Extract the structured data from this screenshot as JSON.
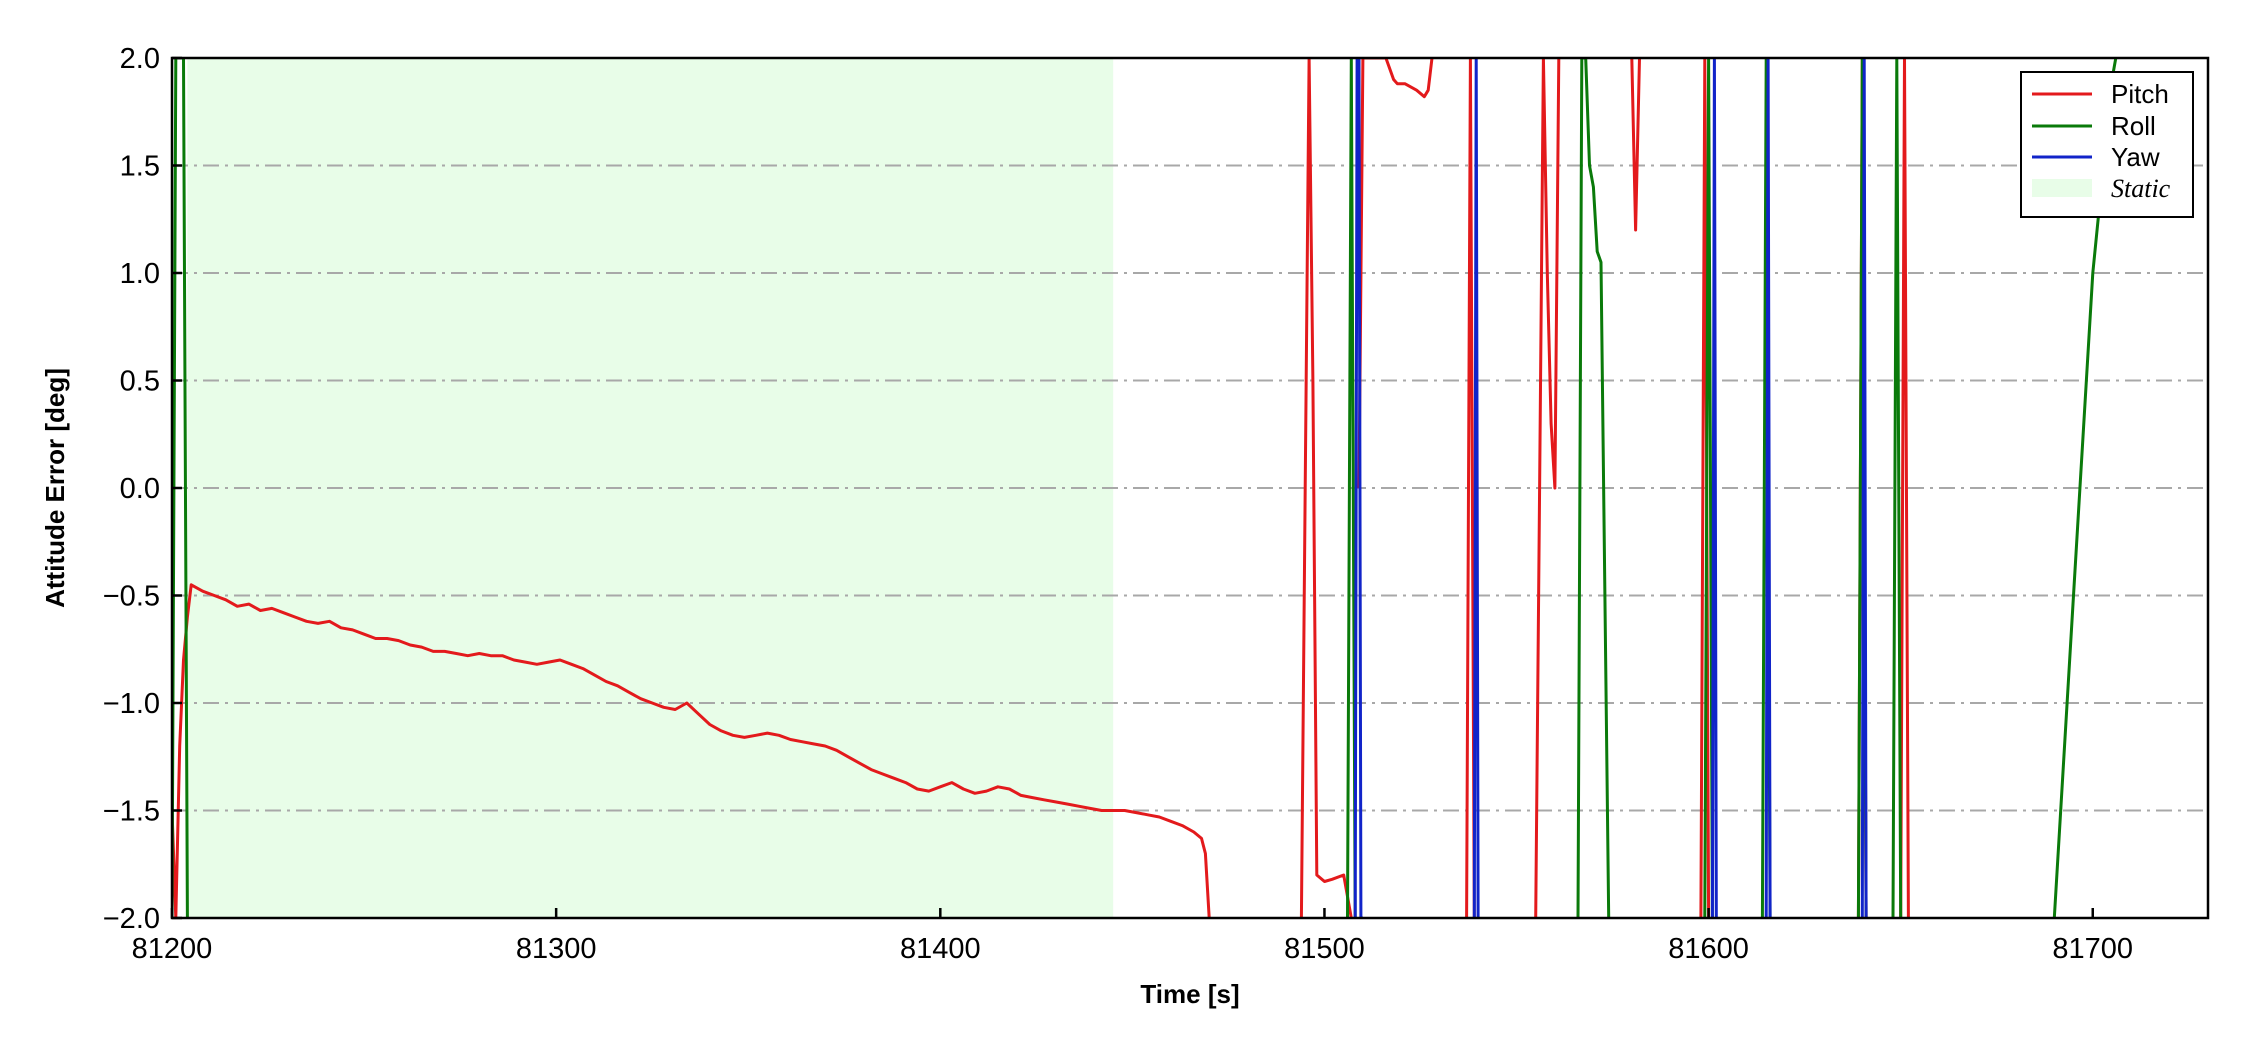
{
  "chart_data": {
    "type": "line",
    "title": "",
    "xlabel": "Time [s]",
    "ylabel": "Attitude Error [deg]",
    "xlim": [
      81200,
      81730
    ],
    "ylim": [
      -2.0,
      2.0
    ],
    "x_ticks": [
      81200,
      81300,
      81400,
      81500,
      81600,
      81700
    ],
    "x_tick_labels": [
      "81200",
      "81300",
      "81400",
      "81500",
      "81600",
      "81700"
    ],
    "y_ticks": [
      2.0,
      1.5,
      1.0,
      0.5,
      0.0,
      -0.5,
      -1.0,
      -1.5,
      -2.0
    ],
    "y_tick_labels": [
      "2.0",
      "1.5",
      "1.0",
      "0.5",
      "0.0",
      "−0.5",
      "−1.0",
      "−1.5",
      "−2.0"
    ],
    "grid": "horizontal dash-dot",
    "legend_position": "top-right",
    "static_region": {
      "label": "Static",
      "x_start": 81204,
      "x_end": 81445,
      "color": "#e8fde8"
    },
    "series": [
      {
        "name": "Pitch",
        "color": "#e31a1c",
        "x": [
          81200,
          81201,
          81202,
          81203,
          81204,
          81205,
          81208,
          81211,
          81214,
          81217,
          81220,
          81223,
          81226,
          81229,
          81232,
          81235,
          81238,
          81241,
          81244,
          81247,
          81250,
          81253,
          81256,
          81259,
          81262,
          81265,
          81268,
          81271,
          81274,
          81277,
          81280,
          81283,
          81286,
          81289,
          81292,
          81295,
          81298,
          81301,
          81304,
          81307,
          81310,
          81313,
          81316,
          81319,
          81322,
          81325,
          81328,
          81331,
          81334,
          81337,
          81340,
          81343,
          81346,
          81349,
          81352,
          81355,
          81358,
          81361,
          81364,
          81367,
          81370,
          81373,
          81376,
          81379,
          81382,
          81385,
          81388,
          81391,
          81394,
          81397,
          81400,
          81403,
          81406,
          81409,
          81412,
          81415,
          81418,
          81421,
          81424,
          81427,
          81430,
          81433,
          81436,
          81439,
          81442,
          81445,
          81448,
          81451,
          81454,
          81457,
          81460,
          81463,
          81466,
          81468,
          81469,
          81470,
          null,
          81494,
          81495,
          81496,
          81497,
          81498,
          81500,
          81502,
          81505,
          81506,
          81507,
          null,
          81509,
          81510,
          81512,
          81515,
          81516,
          81518,
          81519,
          81521,
          81524,
          81526,
          81527,
          81528,
          null,
          81537,
          81538,
          81539,
          null,
          81555,
          81556,
          81557,
          81558,
          81559,
          81560,
          81561,
          null,
          81580,
          81581,
          81582,
          null,
          81598,
          81599,
          81600,
          null,
          81639,
          81640,
          81641,
          null,
          81650,
          81651,
          81652
        ],
        "y": [
          -1.5,
          -2.0,
          -1.2,
          -0.8,
          -0.6,
          -0.45,
          -0.48,
          -0.5,
          -0.52,
          -0.55,
          -0.54,
          -0.57,
          -0.56,
          -0.58,
          -0.6,
          -0.62,
          -0.63,
          -0.62,
          -0.65,
          -0.66,
          -0.68,
          -0.7,
          -0.7,
          -0.71,
          -0.73,
          -0.74,
          -0.76,
          -0.76,
          -0.77,
          -0.78,
          -0.77,
          -0.78,
          -0.78,
          -0.8,
          -0.81,
          -0.82,
          -0.81,
          -0.8,
          -0.82,
          -0.84,
          -0.87,
          -0.9,
          -0.92,
          -0.95,
          -0.98,
          -1.0,
          -1.02,
          -1.03,
          -1.0,
          -1.05,
          -1.1,
          -1.13,
          -1.15,
          -1.16,
          -1.15,
          -1.14,
          -1.15,
          -1.17,
          -1.18,
          -1.19,
          -1.2,
          -1.22,
          -1.25,
          -1.28,
          -1.31,
          -1.33,
          -1.35,
          -1.37,
          -1.4,
          -1.41,
          -1.39,
          -1.37,
          -1.4,
          -1.42,
          -1.41,
          -1.39,
          -1.4,
          -1.43,
          -1.44,
          -1.45,
          -1.46,
          -1.47,
          -1.48,
          -1.49,
          -1.5,
          -1.5,
          -1.5,
          -1.51,
          -1.52,
          -1.53,
          -1.55,
          -1.57,
          -1.6,
          -1.63,
          -1.7,
          -2.0,
          null,
          -2.0,
          0.0,
          2.0,
          0.5,
          -1.8,
          -1.83,
          -1.82,
          -1.8,
          -1.9,
          -2.0,
          null,
          0.0,
          2.0,
          2.0,
          2.0,
          2.0,
          1.9,
          1.88,
          1.88,
          1.85,
          1.82,
          1.85,
          2.0,
          null,
          -2.0,
          2.0,
          -2.0,
          null,
          -2.0,
          0.0,
          2.0,
          1.0,
          0.3,
          0.0,
          2.0,
          null,
          2.0,
          1.2,
          2.0,
          null,
          -2.0,
          2.0,
          -2.0,
          null,
          -2.0,
          2.0,
          -2.0,
          null,
          -2.0,
          2.0,
          -2.0
        ]
      },
      {
        "name": "Roll",
        "color": "#0a7a0a",
        "x": [
          81200,
          81201,
          81202,
          81203,
          81204,
          null,
          81506,
          81507,
          81508,
          null,
          81566,
          81567,
          81568,
          81569,
          81570,
          81571,
          81572,
          81573,
          81574,
          null,
          81599,
          81600,
          81601,
          null,
          81614,
          81615,
          81616,
          null,
          81639,
          81640,
          81641,
          null,
          81648,
          81649,
          81650,
          null,
          81690,
          81695,
          81700,
          81705,
          81706
        ],
        "y": [
          -2.0,
          2.0,
          2.0,
          2.0,
          -2.0,
          null,
          -2.0,
          2.0,
          -2.0,
          null,
          -2.0,
          2.0,
          2.0,
          1.5,
          1.4,
          1.1,
          1.05,
          -0.5,
          -2.0,
          null,
          -2.0,
          2.0,
          -2.0,
          null,
          -2.0,
          2.0,
          -2.0,
          null,
          -2.0,
          2.0,
          -2.0,
          null,
          -2.0,
          2.0,
          -2.0,
          null,
          -2.0,
          -0.5,
          1.0,
          1.9,
          2.0
        ]
      },
      {
        "name": "Yaw",
        "color": "#1124c9",
        "x": [
          81508,
          81508.5,
          81509,
          81509.5,
          81510,
          null,
          81539,
          81539.5,
          81540,
          null,
          81601,
          81601.5,
          81602,
          null,
          81615,
          81615.5,
          81616,
          null,
          81640,
          81640.5,
          81641
        ],
        "y": [
          -2.0,
          2.0,
          2.0,
          -2.0,
          -2.0,
          null,
          -2.0,
          2.0,
          -2.0,
          null,
          -2.0,
          2.0,
          -2.0,
          null,
          -2.0,
          2.0,
          -2.0,
          null,
          -2.0,
          2.0,
          -2.0
        ]
      }
    ]
  },
  "legend": {
    "items": [
      {
        "label": "Pitch",
        "color": "#e31a1c",
        "kind": "line"
      },
      {
        "label": "Roll",
        "color": "#0a7a0a",
        "kind": "line"
      },
      {
        "label": "Yaw",
        "color": "#1124c9",
        "kind": "line"
      },
      {
        "label": "Static",
        "color": "#e8fde8",
        "kind": "patch"
      }
    ]
  }
}
